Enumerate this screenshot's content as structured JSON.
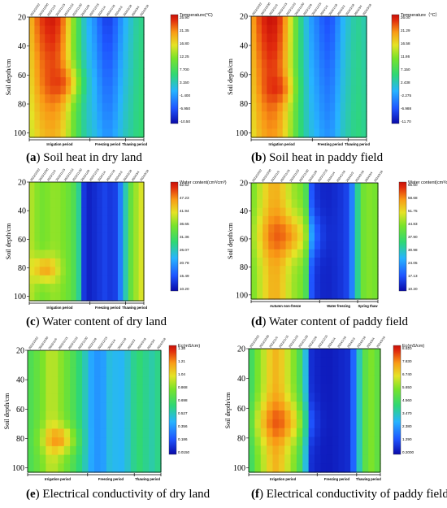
{
  "chart_data": [
    {
      "type": "heatmap",
      "caption_tag": "(a)",
      "caption_text": " Soil heat in dry land",
      "ylabel": "Soil depth/cm",
      "y_ticks": [
        20,
        40,
        60,
        80,
        100
      ],
      "y_range": [
        20,
        103
      ],
      "dates": [
        "2023/10/22",
        "2023/10/30",
        "2023/11/6",
        "2023/11/15",
        "2023/11/23",
        "2023/11/30",
        "2023/12/8",
        "2023/12/15",
        "2024/1/4",
        "2024/1/18",
        "2024/2/3",
        "2024/2/18",
        "2024/3/4",
        "2024/3/18"
      ],
      "colorbar_title": "Temperature(°C)",
      "colorbar_ticks": [
        "25.90",
        "21.35",
        "16.80",
        "12.25",
        "7.700",
        "3.150",
        "-1.400",
        "-5.950",
        "-10.50"
      ],
      "period_labels": [
        "Irrigation period",
        "Freezing period",
        "Thawing period"
      ],
      "period_positions": [
        0.0,
        0.53,
        0.84,
        1.0
      ],
      "columns": [
        19,
        22,
        24,
        25,
        25,
        23,
        19,
        13,
        8,
        3,
        0,
        -2,
        -5,
        -7,
        -6,
        -3,
        0,
        2,
        4,
        5
      ],
      "depth_attenuation": 0.35,
      "hotspot": [
        0.28,
        0.55,
        0.15
      ]
    },
    {
      "type": "heatmap",
      "caption_tag": "(b)",
      "caption_text": " Soil heat in paddy field",
      "ylabel": "Soil depth/cm",
      "y_ticks": [
        20,
        40,
        60,
        80,
        100
      ],
      "y_range": [
        20,
        103
      ],
      "dates": [
        "2023/10/22",
        "2023/10/30",
        "2023/11/6",
        "2023/11/15",
        "2023/11/23",
        "2023/11/30",
        "2023/12/8",
        "2023/12/15",
        "2024/1/4",
        "2024/1/18",
        "2024/2/3",
        "2024/2/18",
        "2024/3/4",
        "2024/3/18"
      ],
      "colorbar_title": "Temperature（°C）",
      "colorbar_ticks": [
        "26.00",
        "21.29",
        "16.58",
        "11.86",
        "7.150",
        "2.438",
        "-2.275",
        "-6.988",
        "-11.70"
      ],
      "period_labels": [
        "Irrigation period",
        "Freezing period",
        "Thawing period"
      ],
      "period_positions": [
        0.0,
        0.53,
        0.84,
        1.0
      ],
      "columns": [
        20,
        23,
        25,
        26,
        25,
        22,
        17,
        11,
        5,
        1,
        -2,
        -4,
        -6,
        -7,
        -5,
        -1,
        1,
        3,
        4,
        3
      ],
      "depth_attenuation": 0.3,
      "hotspot": [
        0.22,
        0.6,
        0.12
      ]
    },
    {
      "type": "heatmap",
      "caption_tag": "(c)",
      "caption_text": " Water content of dry land",
      "ylabel": "Soil depth/cm",
      "y_ticks": [
        20,
        40,
        60,
        80,
        100
      ],
      "y_range": [
        20,
        103
      ],
      "dates": [
        "2023/10/22",
        "2023/10/30",
        "2023/11/6",
        "2023/11/15",
        "2023/11/23",
        "2023/11/30",
        "2023/12/8",
        "2023/12/15",
        "2024/1/4",
        "2024/1/18",
        "2024/2/3",
        "2024/2/18",
        "2024/3/4",
        "2024/3/18"
      ],
      "colorbar_title": "Water content(cm³/cm³)",
      "colorbar_ticks": [
        "52.52",
        "47.23",
        "41.94",
        "36.65",
        "31.36",
        "26.07",
        "20.78",
        "15.49",
        "10.20"
      ],
      "period_labels": [
        "Irrigation period",
        "Freezing period",
        "Thawing period"
      ],
      "period_positions": [
        0.0,
        0.53,
        0.84,
        1.0
      ],
      "columns": [
        38,
        36,
        35,
        36,
        37,
        36,
        35,
        33,
        30,
        14,
        12,
        13,
        14,
        15,
        13,
        16,
        24,
        33,
        37,
        40
      ],
      "depth_attenuation": 0.0,
      "hotspot": [
        0.12,
        0.75,
        0.12
      ]
    },
    {
      "type": "heatmap",
      "caption_tag": "(d)",
      "caption_text": " Water content of paddy field",
      "ylabel": "Soil depth/cm",
      "y_ticks": [
        20,
        40,
        60,
        80,
        100
      ],
      "y_range": [
        20,
        103
      ],
      "dates": [
        "2023/10/22",
        "2023/10/30",
        "2023/11/6",
        "2023/11/15",
        "2023/11/23",
        "2023/11/30",
        "2023/12/8",
        "2023/12/15",
        "2024/1/4",
        "2024/1/18",
        "2024/2/3",
        "2024/2/18",
        "2024/3/4",
        "2024/3/18"
      ],
      "colorbar_title": "Water content(cm³/cm³)",
      "colorbar_ticks": [
        "65.60",
        "58.68",
        "51.75",
        "44.83",
        "37.90",
        "30.98",
        "24.05",
        "17.13",
        "10.20"
      ],
      "period_labels": [
        "Autumn non-freeze",
        "Water freezing",
        "Spring thaw"
      ],
      "period_positions": [
        0.0,
        0.54,
        0.84,
        1.0
      ],
      "columns": [
        44,
        48,
        52,
        55,
        54,
        50,
        46,
        44,
        42,
        18,
        14,
        13,
        13,
        14,
        15,
        17,
        30,
        42,
        44,
        43
      ],
      "depth_attenuation": 0.0,
      "hotspot": [
        0.25,
        0.45,
        0.2
      ]
    },
    {
      "type": "heatmap",
      "caption_tag": "(e)",
      "caption_text": " Electrical conductivity of dry land",
      "ylabel": "Soil depth/cm",
      "y_ticks": [
        20,
        40,
        60,
        80,
        100
      ],
      "y_range": [
        20,
        103
      ],
      "dates": [
        "2023/10/22",
        "2023/10/30",
        "2023/11/6",
        "2023/11/15",
        "2023/11/23",
        "2023/11/30",
        "2023/12/8",
        "2023/12/15",
        "2024/1/4",
        "2024/1/18",
        "2024/2/3",
        "2024/2/18",
        "2024/3/4",
        "2024/3/18"
      ],
      "colorbar_title": "Ec(mS/cm)",
      "colorbar_ticks": [
        "1.38",
        "1.21",
        "1.04",
        "0.868",
        "0.698",
        "0.527",
        "0.356",
        "0.186",
        "0.0150"
      ],
      "period_labels": [
        "Irrigation period",
        "Freezing period",
        "Thawing period"
      ],
      "period_positions": [
        0.0,
        0.45,
        0.8,
        1.0
      ],
      "columns": [
        0.72,
        0.78,
        0.85,
        0.95,
        0.9,
        0.82,
        0.75,
        0.65,
        0.55,
        0.4,
        0.35,
        0.38,
        0.5,
        0.42,
        0.45,
        0.55,
        0.65,
        0.6,
        0.55,
        0.6
      ],
      "depth_attenuation": 0.0,
      "hotspot": [
        0.22,
        0.75,
        0.12
      ]
    },
    {
      "type": "heatmap",
      "caption_tag": "(f)",
      "caption_text": " Electrical conductivity of paddy field",
      "ylabel": "Soil depth/cm",
      "y_ticks": [
        20,
        40,
        60,
        80,
        100
      ],
      "y_range": [
        20,
        103
      ],
      "dates": [
        "2023/10/22",
        "2023/10/30",
        "2023/11/6",
        "2023/11/15",
        "2023/11/23",
        "2023/11/30",
        "2023/12/8",
        "2023/12/15",
        "2024/1/4",
        "2024/1/18",
        "2024/2/3",
        "2024/2/18",
        "2024/3/4",
        "2024/3/18"
      ],
      "colorbar_title": "Ec(mS/cm)",
      "colorbar_ticks": [
        "8.920",
        "7.830",
        "6.740",
        "5.650",
        "4.560",
        "3.470",
        "2.380",
        "1.290",
        "0.2000"
      ],
      "period_labels": [
        "Irrigation period",
        "Freezing period",
        "Thawing period"
      ],
      "period_positions": [
        0.0,
        0.52,
        0.82,
        1.0
      ],
      "columns": [
        4.5,
        5.5,
        6.2,
        7.0,
        7.2,
        6.5,
        5.8,
        5.0,
        3.5,
        0.8,
        0.6,
        0.5,
        0.5,
        0.6,
        0.7,
        0.8,
        3.0,
        4.8,
        5.5,
        5.0
      ],
      "depth_attenuation": 0.0,
      "hotspot": [
        0.22,
        0.6,
        0.18
      ]
    }
  ]
}
